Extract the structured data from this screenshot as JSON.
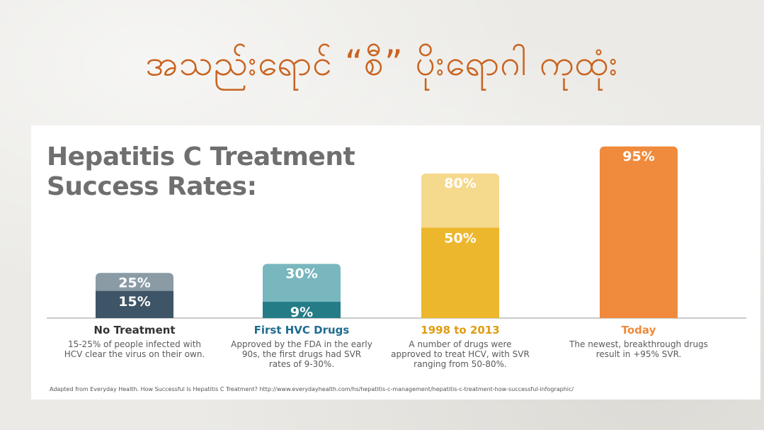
{
  "slide": {
    "heading": "အသည်းရောင် “စီ” ပိုးရောဂါ ကုထုံး"
  },
  "chart_data": {
    "type": "bar",
    "title": "Hepatitis C Treatment Success Rates:",
    "categories": [
      "No Treatment",
      "First HVC Drugs",
      "1998 to 2013",
      "Today"
    ],
    "descriptions": [
      "15-25% of people infected with HCV clear the virus on their own.",
      "Approved by the FDA in the early 90s, the first drugs had SVR rates of 9-30%.",
      "A number of drugs were approved to treat HCV, with SVR ranging from 50-80%.",
      "The newest, breakthrough drugs result in +95% SVR."
    ],
    "series": [
      {
        "values": [
          15,
          9,
          50,
          95
        ]
      },
      {
        "values": [
          25,
          30,
          80,
          95
        ]
      }
    ],
    "value_labels_low": [
      "15%",
      "9%",
      "50%",
      "95%"
    ],
    "value_labels_high": [
      "25%",
      "30%",
      "80%",
      ""
    ],
    "colors_low": [
      "#3d5566",
      "#237c86",
      "#edb72d",
      "#f08a3c"
    ],
    "colors_high": [
      "#8a9ba5",
      "#79b7bf",
      "#f5d98c",
      "#f08a3c"
    ],
    "label_colors": [
      "#333333",
      "#1f6c8e",
      "#e09b10",
      "#f08a3c"
    ],
    "ylim": [
      0,
      100
    ],
    "source": "Adapted from Everyday Health. How Successful Is Hepatitis C Treatment?   http://www.everydayhealth.com/hs/hepatitis-c-management/hepatitis-c-treatment-how-successful-infographic/"
  }
}
